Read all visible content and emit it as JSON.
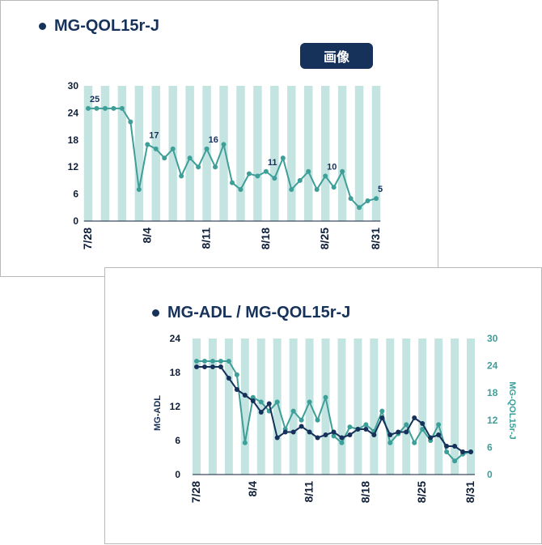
{
  "colors": {
    "navy": "#17325a",
    "teal": "#3e9e98",
    "stripe": "#c4e4e2"
  },
  "chart_data": [
    {
      "type": "line",
      "title": "MG-QOL15r-J",
      "badge": "画像",
      "x": [
        "7/28",
        "7/29",
        "7/30",
        "7/31",
        "8/1",
        "8/2",
        "8/3",
        "8/4",
        "8/5",
        "8/6",
        "8/7",
        "8/8",
        "8/9",
        "8/10",
        "8/11",
        "8/12",
        "8/13",
        "8/14",
        "8/15",
        "8/16",
        "8/17",
        "8/18",
        "8/19",
        "8/20",
        "8/21",
        "8/22",
        "8/23",
        "8/24",
        "8/25",
        "8/26",
        "8/27",
        "8/28",
        "8/29",
        "8/30",
        "8/31"
      ],
      "x_tick_labels": [
        "7/28",
        "8/4",
        "8/11",
        "8/18",
        "8/25",
        "8/31"
      ],
      "ylim": [
        0,
        30
      ],
      "y_ticks": [
        "0",
        "6",
        "12",
        "18",
        "24",
        "30"
      ],
      "series": [
        {
          "values": [
            25,
            25,
            25,
            25,
            25,
            22,
            7,
            17,
            16,
            14,
            16,
            10,
            14,
            12,
            16,
            12,
            17,
            8.5,
            7,
            10.5,
            10,
            11,
            9.5,
            14,
            7,
            9,
            11,
            7,
            10,
            7.5,
            11,
            5,
            3,
            4.5,
            5
          ]
        }
      ],
      "data_labels": [
        {
          "x": "7/28",
          "text": "25"
        },
        {
          "x": "8/4",
          "text": "17"
        },
        {
          "x": "8/11",
          "text": "16"
        },
        {
          "x": "8/18",
          "text": "11"
        },
        {
          "x": "8/25",
          "text": "10"
        },
        {
          "x": "8/31",
          "text": "5"
        }
      ]
    },
    {
      "type": "line",
      "title": "MG-ADL / MG-QOL15r-J",
      "x": [
        "7/28",
        "7/29",
        "7/30",
        "7/31",
        "8/1",
        "8/2",
        "8/3",
        "8/4",
        "8/5",
        "8/6",
        "8/7",
        "8/8",
        "8/9",
        "8/10",
        "8/11",
        "8/12",
        "8/13",
        "8/14",
        "8/15",
        "8/16",
        "8/17",
        "8/18",
        "8/19",
        "8/20",
        "8/21",
        "8/22",
        "8/23",
        "8/24",
        "8/25",
        "8/26",
        "8/27",
        "8/28",
        "8/29",
        "8/30",
        "8/31"
      ],
      "x_tick_labels": [
        "7/28",
        "8/4",
        "8/11",
        "8/18",
        "8/25",
        "8/31"
      ],
      "left_axis": {
        "label": "MG-ADL",
        "ylim": [
          0,
          24
        ],
        "ticks": [
          "0",
          "6",
          "12",
          "18",
          "24"
        ]
      },
      "right_axis": {
        "label": "MG-QOL15r-J",
        "ylim": [
          0,
          30
        ],
        "ticks": [
          "0",
          "6",
          "12",
          "18",
          "24",
          "30"
        ]
      },
      "series": [
        {
          "name": "MG-ADL",
          "axis": "left",
          "values": [
            19,
            19,
            19,
            19,
            17,
            15,
            14,
            13,
            11,
            12.5,
            6.5,
            7.5,
            7.5,
            8.5,
            7.5,
            6.5,
            7,
            7.5,
            6.5,
            7,
            8,
            8,
            7,
            10,
            7,
            7.5,
            7.5,
            10,
            9,
            6.5,
            7,
            5,
            5,
            4,
            4
          ]
        },
        {
          "name": "MG-QOL15r-J",
          "axis": "right",
          "values": [
            25,
            25,
            25,
            25,
            25,
            22,
            7,
            17,
            16,
            14,
            16,
            10,
            14,
            12,
            16,
            12,
            17,
            8.5,
            7,
            10.5,
            10,
            11,
            9.5,
            14,
            7,
            9,
            11,
            7,
            10,
            7.5,
            11,
            5,
            3,
            4.5,
            5
          ]
        }
      ]
    }
  ]
}
